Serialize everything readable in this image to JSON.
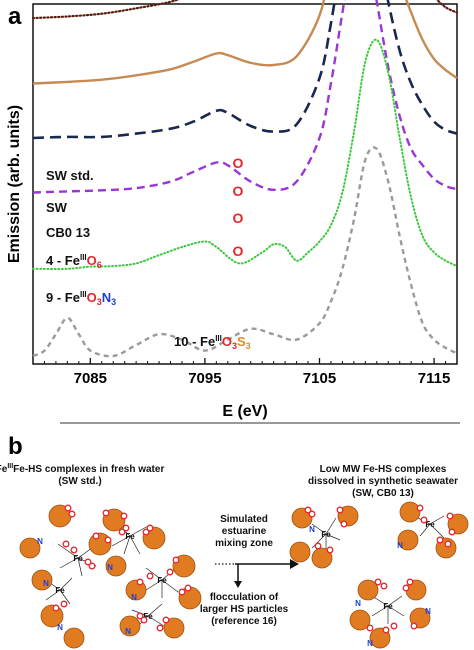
{
  "panel_a": {
    "label": "a"
  },
  "panel_b": {
    "label": "b",
    "left_title_line1": "Fe-HS complexes in fresh water",
    "left_title_sup": "III",
    "left_title_line2": "(SW std.)",
    "right_title_line1": "Low MW Fe-HS complexes",
    "right_title_line2": "dissolved in synthetic seawater",
    "right_title_line3": "(SW, CB0 13)",
    "mid_line1": "Simulated",
    "mid_line2": "estuarine",
    "mid_line3": "mixing zone",
    "mid_line4": "flocculation of",
    "mid_line5": "larger HS particles",
    "mid_line6": "(reference 16)",
    "atom_fe": "Fe",
    "atom_n": "N"
  },
  "colors": {
    "sw_std": "#5a1a0e",
    "sw": "#c68a52",
    "cb0": "#1a2850",
    "fe_o6": "#9a35d6",
    "fe_o3n3": "#3cc83c",
    "fe_o3s3": "#9a9a9a",
    "o_marker": "#e8262b",
    "ball": "#e07b22",
    "n_atom": "#1f3fd0",
    "s_label": "#e08a2a",
    "n_label": "#1f3fd0"
  },
  "chart_data": {
    "type": "line",
    "xlabel": "E (eV)",
    "ylabel": "Emission (arb. units)",
    "xlim": [
      7080,
      7117
    ],
    "xticks": [
      7085,
      7095,
      7105,
      7115
    ],
    "grid": false,
    "o_marker_text": "O",
    "series": [
      {
        "name": "SW std.",
        "label_parts": [
          "SW std."
        ],
        "offset": 0.62,
        "style": "dotted",
        "x": [
          7080,
          7083,
          7086,
          7089,
          7092,
          7094,
          7096,
          7097,
          7099,
          7101,
          7103,
          7105,
          7106,
          7107,
          7108,
          7108.5,
          7109,
          7110,
          7111,
          7112,
          7113,
          7114,
          7115,
          7116,
          7117
        ],
        "y": [
          0.0,
          0.003,
          0.008,
          0.018,
          0.03,
          0.045,
          0.06,
          0.058,
          0.044,
          0.04,
          0.06,
          0.14,
          0.24,
          0.37,
          0.46,
          0.48,
          0.47,
          0.4,
          0.3,
          0.2,
          0.13,
          0.07,
          0.04,
          0.02,
          0.01
        ]
      },
      {
        "name": "SW",
        "label_parts": [
          "SW"
        ],
        "offset": 0.5,
        "style": "solid",
        "x": [
          7080,
          7083,
          7086,
          7089,
          7092,
          7094,
          7096,
          7097,
          7099,
          7101,
          7103,
          7105,
          7106,
          7107,
          7108,
          7108.5,
          7109,
          7110,
          7111,
          7112,
          7113,
          7114,
          7115,
          7116,
          7117
        ],
        "y": [
          0.0,
          0.003,
          0.007,
          0.015,
          0.026,
          0.04,
          0.055,
          0.052,
          0.038,
          0.034,
          0.05,
          0.125,
          0.22,
          0.34,
          0.43,
          0.45,
          0.44,
          0.37,
          0.28,
          0.19,
          0.13,
          0.08,
          0.045,
          0.025,
          0.01
        ]
      },
      {
        "name": "CB0 13",
        "label_parts": [
          "CB0 13"
        ],
        "offset": 0.4,
        "style": "long-dash",
        "x": [
          7080,
          7083,
          7086,
          7089,
          7092,
          7094,
          7096,
          7097,
          7099,
          7101,
          7103,
          7105,
          7106,
          7107,
          7108,
          7108.5,
          7109,
          7110,
          7111,
          7112,
          7113,
          7114,
          7115,
          7116,
          7117
        ],
        "y": [
          0.0,
          0.002,
          0.002,
          0.008,
          0.017,
          0.03,
          0.05,
          0.046,
          0.022,
          0.012,
          0.025,
          0.11,
          0.21,
          0.34,
          0.44,
          0.47,
          0.45,
          0.36,
          0.25,
          0.16,
          0.1,
          0.06,
          0.03,
          0.015,
          0.008
        ]
      },
      {
        "name": "4 - FeIIIO6",
        "label_parts": [
          "4 - Fe",
          "III",
          "O",
          "6"
        ],
        "offset": 0.3,
        "style": "dash",
        "x": [
          7080,
          7083,
          7086,
          7089,
          7092,
          7094,
          7096,
          7097,
          7099,
          7101,
          7103,
          7105,
          7106,
          7107,
          7108,
          7108.5,
          7109,
          7110,
          7111,
          7112,
          7113,
          7114,
          7115,
          7116,
          7117
        ],
        "y": [
          0.0,
          0.002,
          0.004,
          0.008,
          0.02,
          0.038,
          0.055,
          0.05,
          0.02,
          0.005,
          0.02,
          0.1,
          0.2,
          0.33,
          0.45,
          0.48,
          0.46,
          0.35,
          0.23,
          0.14,
          0.08,
          0.05,
          0.025,
          0.012,
          0.006
        ]
      },
      {
        "name": "9 - FeIIIO3N3",
        "label_parts": [
          "9 - Fe",
          "III",
          "O",
          "3",
          "N",
          "3"
        ],
        "offset": 0.16,
        "style": "dotted-green",
        "x": [
          7080,
          7083,
          7085,
          7087,
          7089,
          7091,
          7093,
          7095,
          7096,
          7098,
          7100,
          7101,
          7102,
          7103,
          7104,
          7105,
          7106,
          7107,
          7108,
          7109,
          7110,
          7111,
          7112,
          7113,
          7114,
          7115,
          7116,
          7117
        ],
        "y": [
          0.0,
          0.0,
          0.004,
          0.005,
          0.01,
          0.025,
          0.04,
          0.05,
          0.04,
          0.01,
          0.03,
          0.045,
          0.04,
          0.015,
          0.03,
          0.05,
          0.08,
          0.14,
          0.25,
          0.38,
          0.42,
          0.36,
          0.24,
          0.13,
          0.06,
          0.03,
          0.015,
          0.005
        ]
      },
      {
        "name": "10 - FeIIIO3S3",
        "label_parts": [
          "10 - Fe",
          "III",
          "O",
          "3",
          "S",
          "3"
        ],
        "offset": 0.0,
        "style": "short-dash-gray",
        "x": [
          7080,
          7081,
          7082,
          7083,
          7084,
          7085,
          7087,
          7089,
          7091,
          7093,
          7095,
          7097,
          7099,
          7101,
          7103,
          7105,
          7106,
          7107,
          7108,
          7109,
          7110,
          7111,
          7112,
          7113,
          7114,
          7115,
          7116,
          7117
        ],
        "y": [
          0.0,
          0.01,
          0.04,
          0.07,
          0.04,
          0.01,
          0.0,
          0.02,
          0.04,
          0.03,
          0.01,
          0.03,
          0.05,
          0.04,
          0.03,
          0.06,
          0.1,
          0.16,
          0.25,
          0.36,
          0.38,
          0.32,
          0.22,
          0.13,
          0.06,
          0.03,
          0.015,
          0.005
        ]
      }
    ]
  }
}
